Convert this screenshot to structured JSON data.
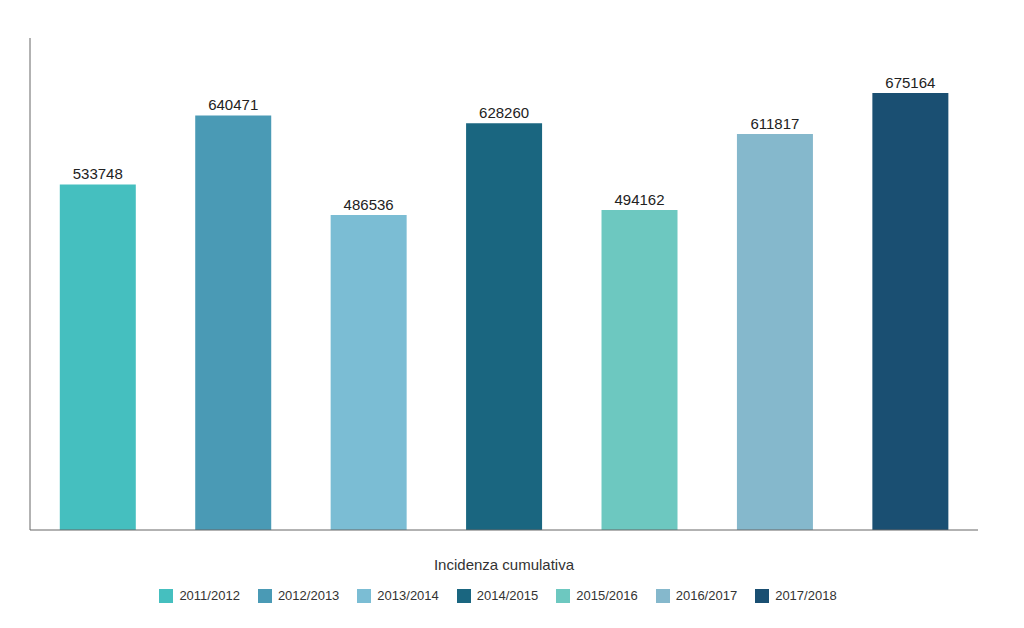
{
  "chart_data": {
    "type": "bar",
    "categories": [
      "2011/2012",
      "2012/2013",
      "2013/2014",
      "2014/2015",
      "2015/2016",
      "2016/2017",
      "2017/2018"
    ],
    "values": [
      533748,
      640471,
      486536,
      628260,
      494162,
      611817,
      675164
    ],
    "colors": [
      "#45bfbf",
      "#4a9ab5",
      "#7bbdd4",
      "#1a6680",
      "#6dc8c0",
      "#85b8cc",
      "#1a4f72"
    ],
    "xlabel": "Incidenza cumulativa",
    "ylim": [
      0,
      760000
    ],
    "data_labels": true,
    "tick_labels": false,
    "grid": false,
    "legend": "bottom"
  }
}
